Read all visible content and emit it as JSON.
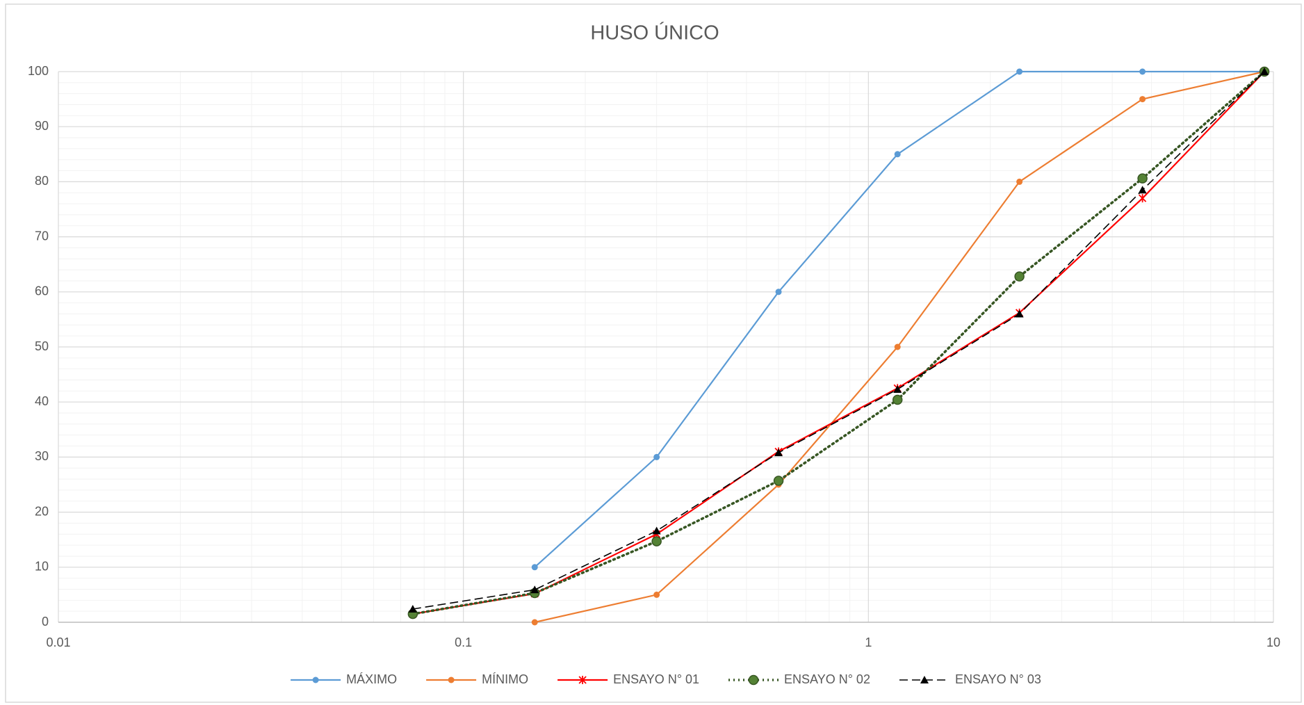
{
  "chart_data": {
    "type": "line",
    "title": "HUSO ÚNICO",
    "x": [
      0.075,
      0.15,
      0.3,
      0.6,
      1.18,
      2.36,
      4.75,
      9.5
    ],
    "xlim": [
      0.01,
      10
    ],
    "xticks": [
      0.01,
      0.1,
      1,
      10
    ],
    "xlog": true,
    "ylim": [
      0,
      100
    ],
    "yticks": [
      0,
      10,
      20,
      30,
      40,
      50,
      60,
      70,
      80,
      90,
      100
    ],
    "grid": true,
    "minor_grid": true,
    "legend": "bottom",
    "series": [
      {
        "name": "MÁXIMO",
        "color": "#5b9bd5",
        "marker": "circle",
        "dash": "solid",
        "values": [
          null,
          10,
          30,
          60,
          85,
          100,
          100,
          100
        ]
      },
      {
        "name": "MÍNIMO",
        "color": "#ed7d31",
        "marker": "circle",
        "dash": "solid",
        "values": [
          null,
          0,
          5,
          25,
          50,
          80,
          95,
          100
        ]
      },
      {
        "name": "ENSAYO N° 01",
        "color": "#ff0000",
        "marker": "star",
        "dash": "solid",
        "values": [
          1.5,
          5.2,
          16,
          31,
          42.5,
          56.2,
          77,
          100
        ]
      },
      {
        "name": "ENSAYO N° 02",
        "color": "#375623",
        "marker_fill": "#548235",
        "marker": "bigcircle",
        "dash": "dotted",
        "values": [
          1.5,
          5.3,
          14.7,
          25.7,
          40.4,
          62.8,
          80.6,
          100
        ]
      },
      {
        "name": "ENSAYO N° 03",
        "color": "#000000",
        "marker": "triangle",
        "dash": "dashed",
        "values": [
          2.4,
          5.9,
          16.6,
          30.8,
          42.3,
          56,
          78.5,
          100
        ]
      }
    ]
  }
}
